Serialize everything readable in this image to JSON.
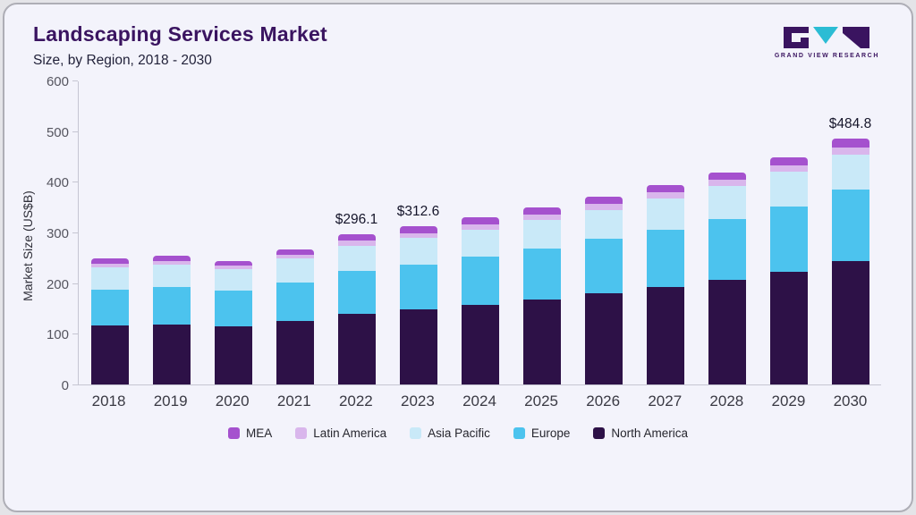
{
  "header": {
    "title": "Landscaping Services Market",
    "subtitle": "Size, by Region, 2018 - 2030",
    "logo_text": "GRAND VIEW RESEARCH"
  },
  "colors": {
    "card_background": "#f3f3fb",
    "title": "#3a1460",
    "axis_line": "#c6c6d2",
    "logo_teal": "#2bbcd4",
    "logo_purple": "#3a1460"
  },
  "chart_data": {
    "type": "bar",
    "stacked": true,
    "title": "Landscaping Services Market Size, by Region, 2018 - 2030",
    "xlabel": "",
    "ylabel": "Market Size (US$B)",
    "ylim": [
      0,
      600
    ],
    "ytick_step": 100,
    "grid": false,
    "legend_position": "bottom",
    "categories": [
      "2018",
      "2019",
      "2020",
      "2021",
      "2022",
      "2023",
      "2024",
      "2025",
      "2026",
      "2027",
      "2028",
      "2029",
      "2030"
    ],
    "series": [
      {
        "name": "North America",
        "color": "#2d1147",
        "values": [
          116,
          119,
          115,
          126,
          140,
          149,
          157,
          168,
          180,
          193,
          206,
          222,
          244
        ]
      },
      {
        "name": "Europe",
        "color": "#4cc3ee",
        "values": [
          71,
          73,
          70,
          76,
          84,
          88,
          95,
          100,
          107,
          113,
          121,
          130,
          140
        ]
      },
      {
        "name": "Asia Pacific",
        "color": "#c9e9f8",
        "values": [
          44,
          45,
          42,
          46,
          50,
          52,
          54,
          56,
          58,
          61,
          64,
          68,
          70
        ]
      },
      {
        "name": "Latin America",
        "color": "#d9b6ec",
        "values": [
          7,
          7,
          7,
          7.5,
          9.5,
          10,
          10.5,
          11,
          11,
          12,
          12.5,
          13,
          14
        ]
      },
      {
        "name": "MEA",
        "color": "#a551ce",
        "values": [
          11,
          11,
          10,
          11,
          12.6,
          13.6,
          13.5,
          14,
          14.5,
          15,
          15.5,
          16,
          16.8
        ]
      }
    ],
    "totals_labeled": {
      "2022": 296.1,
      "2023": 312.6,
      "2030": 484.8
    },
    "annotations": [
      {
        "category": "2022",
        "label": "$296.1"
      },
      {
        "category": "2023",
        "label": "$312.6"
      },
      {
        "category": "2030",
        "label": "$484.8"
      }
    ],
    "legend": [
      "MEA",
      "Latin America",
      "Asia Pacific",
      "Europe",
      "North America"
    ]
  }
}
